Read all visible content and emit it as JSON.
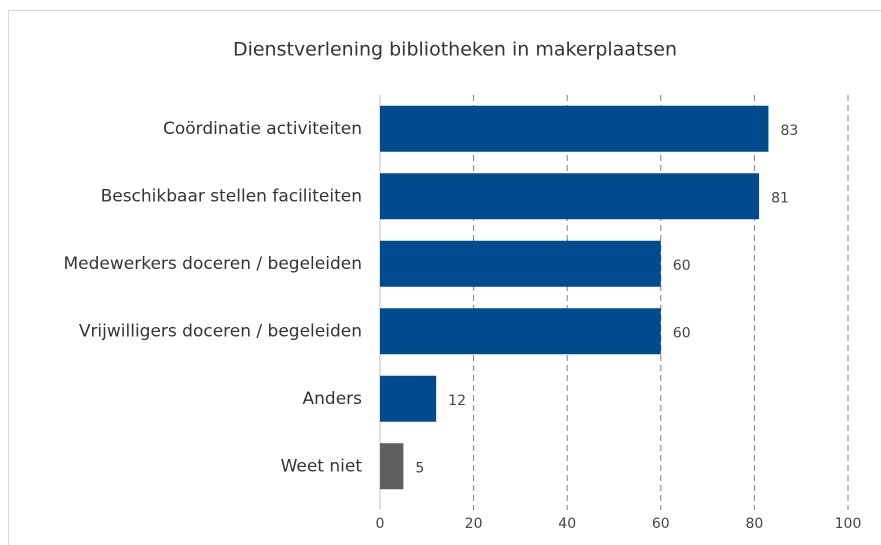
{
  "chart_data": {
    "type": "hbar",
    "title": "Dienstverlening bibliotheken in makerplaatsen",
    "categories": [
      "Coördinatie activiteiten",
      "Beschikbaar stellen faciliteiten",
      "Medewerkers doceren / begeleiden",
      "Vrijwilligers doceren / begeleiden",
      "Anders",
      "Weet niet"
    ],
    "values": [
      83,
      81,
      60,
      60,
      12,
      5
    ],
    "colors": [
      "#004b8d",
      "#004b8d",
      "#004b8d",
      "#004b8d",
      "#004b8d",
      "#5f5f5f"
    ],
    "xlim": [
      0,
      100
    ],
    "xticks": [
      0,
      20,
      40,
      60,
      80,
      100
    ],
    "grid": true
  }
}
